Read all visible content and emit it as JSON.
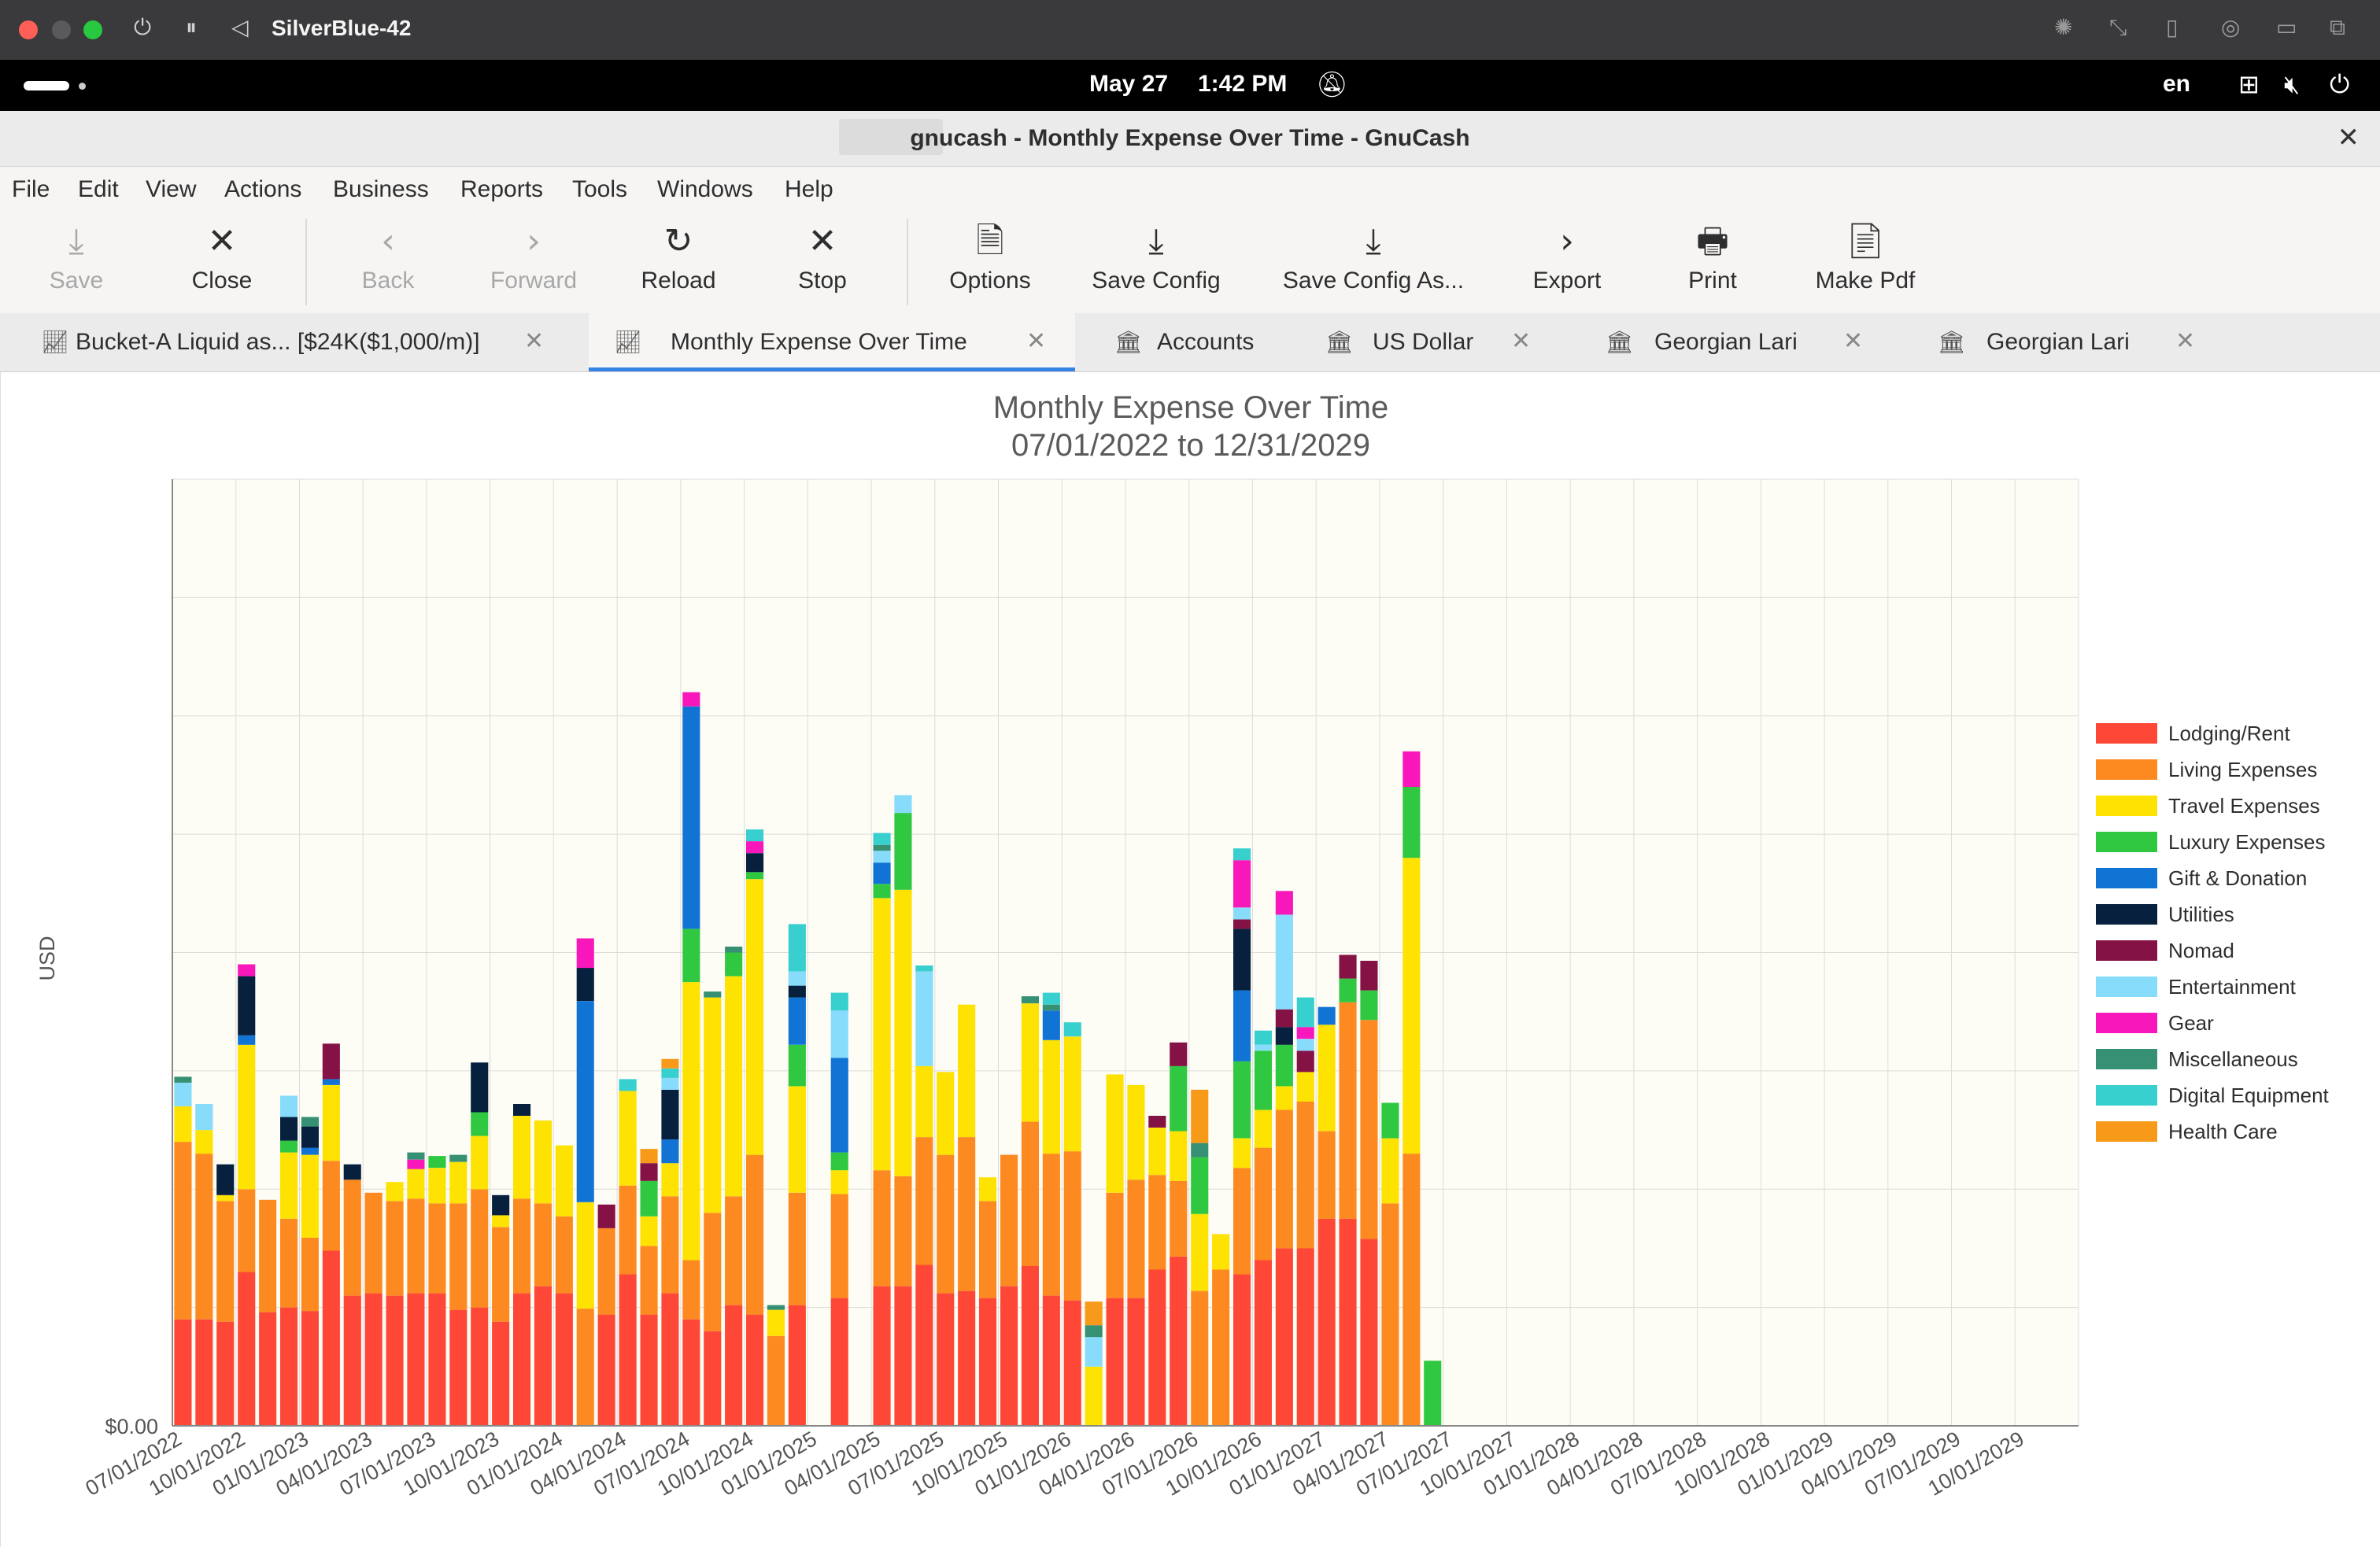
{
  "vm": {
    "title": "SilverBlue-42",
    "colors": {
      "close": "#ff5f57",
      "minimize": "#5a5a5c",
      "zoom": "#28c840"
    },
    "controls": [
      "power-icon",
      "pause-icon",
      "back-icon"
    ],
    "right_icons": [
      "brightness-icon",
      "resize-icon",
      "usb-icon",
      "network-icon",
      "folder-icon",
      "windows-icon"
    ]
  },
  "topbar": {
    "date": "May 27",
    "time": "1:42 PM",
    "lang": "en",
    "icons": [
      "activities-icon",
      "notifications-off-icon",
      "network-icon",
      "volume-muted-icon",
      "power-icon"
    ]
  },
  "window": {
    "title": "gnucash - Monthly Expense Over Time - GnuCash"
  },
  "menubar": {
    "items": [
      "File",
      "Edit",
      "View",
      "Actions",
      "Business",
      "Reports",
      "Tools",
      "Windows",
      "Help"
    ]
  },
  "toolbar": {
    "buttons": [
      {
        "label": "Save",
        "icon": "save-icon",
        "disabled": true
      },
      {
        "label": "Close",
        "icon": "close-icon",
        "disabled": false
      },
      {
        "label": "Back",
        "icon": "back-icon",
        "disabled": true
      },
      {
        "label": "Forward",
        "icon": "forward-icon",
        "disabled": true
      },
      {
        "label": "Reload",
        "icon": "reload-icon",
        "disabled": false
      },
      {
        "label": "Stop",
        "icon": "stop-icon",
        "disabled": false
      },
      {
        "label": "Options",
        "icon": "options-icon",
        "disabled": false
      },
      {
        "label": "Save Config",
        "icon": "save-config-icon",
        "disabled": false
      },
      {
        "label": "Save Config As...",
        "icon": "save-config-as-icon",
        "disabled": false
      },
      {
        "label": "Export",
        "icon": "export-icon",
        "disabled": false
      },
      {
        "label": "Print",
        "icon": "print-icon",
        "disabled": false
      },
      {
        "label": "Make Pdf",
        "icon": "pdf-icon",
        "disabled": false
      }
    ]
  },
  "tabs": [
    {
      "label": "Bucket-A Liquid as... [$24K($1,000/m)]",
      "icon": "chart-icon",
      "closable": true,
      "active": false
    },
    {
      "label": "Monthly Expense Over Time",
      "icon": "chart-icon",
      "closable": true,
      "active": true
    },
    {
      "label": "Accounts",
      "icon": "bank-icon",
      "closable": false,
      "active": false
    },
    {
      "label": "US Dollar",
      "icon": "bank-icon",
      "closable": true,
      "active": false
    },
    {
      "label": "Georgian Lari",
      "icon": "bank-icon",
      "closable": true,
      "active": false
    },
    {
      "label": "Georgian Lari",
      "icon": "bank-icon",
      "closable": true,
      "active": false
    }
  ],
  "chart_data": {
    "type": "bar",
    "stacked": true,
    "title": "Monthly Expense Over Time",
    "subtitle": "07/01/2022 to 12/31/2029",
    "ylabel": "USD",
    "y_tick_label": "$0.00",
    "ylim": [
      0,
      800
    ],
    "grid": true,
    "legend_position": "right",
    "x_tick_labels": [
      "07/01/2022",
      "10/01/2022",
      "01/01/2023",
      "04/01/2023",
      "07/01/2023",
      "10/01/2023",
      "01/01/2024",
      "04/01/2024",
      "07/01/2024",
      "10/01/2024",
      "01/01/2025",
      "04/01/2025",
      "07/01/2025",
      "10/01/2025",
      "01/01/2026",
      "04/01/2026",
      "07/01/2026",
      "10/01/2026",
      "01/01/2027",
      "04/01/2027",
      "07/01/2027",
      "10/01/2027",
      "01/01/2028",
      "04/01/2028",
      "07/01/2028",
      "10/01/2028",
      "01/01/2029",
      "04/01/2029",
      "07/01/2029",
      "10/01/2029"
    ],
    "series": [
      {
        "name": "Lodging/Rent",
        "color": "#fe4737",
        "values": [
          90,
          90,
          88,
          130,
          96,
          100,
          97,
          148,
          110,
          112,
          110,
          112,
          112,
          98,
          100,
          88,
          112,
          118,
          112,
          0,
          94,
          128,
          94,
          112,
          90,
          80,
          102,
          94,
          0,
          102,
          0,
          108,
          0,
          118,
          118,
          136,
          112,
          114,
          108,
          118,
          135,
          110,
          106,
          0,
          108,
          108,
          132,
          143,
          0,
          0,
          128,
          140,
          150,
          150,
          175,
          175,
          158,
          0,
          0,
          0,
          0,
          0,
          0,
          0,
          0,
          0,
          0
        ]
      },
      {
        "name": "Living Expenses",
        "color": "#fd8a21",
        "values": [
          150,
          140,
          102,
          70,
          95,
          75,
          62,
          76,
          98,
          85,
          80,
          80,
          76,
          90,
          100,
          80,
          80,
          70,
          65,
          99,
          73,
          75,
          58,
          82,
          50,
          100,
          92,
          135,
          76,
          95,
          0,
          88,
          0,
          98,
          93,
          108,
          117,
          130,
          82,
          111,
          122,
          120,
          126,
          0,
          89,
          100,
          80,
          64,
          114,
          132,
          90,
          95,
          117,
          124,
          74,
          183,
          185,
          188,
          230,
          0,
          0,
          0,
          0,
          0,
          0,
          0,
          0
        ]
      },
      {
        "name": "Travel Expenses",
        "color": "#fee202",
        "values": [
          30,
          20,
          5,
          122,
          0,
          56,
          70,
          64,
          0,
          0,
          16,
          25,
          30,
          35,
          45,
          10,
          70,
          70,
          60,
          90,
          0,
          80,
          25,
          28,
          235,
          182,
          186,
          233,
          22,
          90,
          0,
          20,
          0,
          230,
          242,
          60,
          70,
          112,
          20,
          0,
          100,
          96,
          97,
          50,
          100,
          80,
          40,
          42,
          65,
          30,
          25,
          32,
          20,
          25,
          90,
          0,
          0,
          55,
          250,
          0,
          0,
          0,
          0,
          0,
          0,
          0,
          0
        ]
      },
      {
        "name": "Luxury Expenses",
        "color": "#30c840",
        "values": [
          0,
          0,
          0,
          0,
          0,
          10,
          0,
          0,
          0,
          0,
          0,
          0,
          10,
          0,
          20,
          0,
          0,
          0,
          0,
          0,
          0,
          0,
          30,
          0,
          45,
          0,
          20,
          6,
          0,
          35,
          0,
          15,
          0,
          12,
          65,
          0,
          0,
          0,
          0,
          0,
          0,
          0,
          0,
          0,
          0,
          0,
          0,
          55,
          48,
          0,
          65,
          50,
          35,
          0,
          0,
          20,
          25,
          30,
          60,
          55,
          0,
          0,
          0,
          0,
          0,
          0,
          0
        ]
      },
      {
        "name": "Gift & Donation",
        "color": "#1174d5",
        "values": [
          0,
          0,
          0,
          8,
          0,
          0,
          6,
          5,
          0,
          0,
          0,
          0,
          0,
          0,
          0,
          0,
          0,
          0,
          0,
          170,
          0,
          0,
          0,
          20,
          188,
          0,
          0,
          0,
          0,
          40,
          0,
          80,
          0,
          18,
          0,
          0,
          0,
          0,
          0,
          0,
          0,
          25,
          0,
          0,
          0,
          0,
          0,
          0,
          0,
          0,
          60,
          0,
          0,
          0,
          15,
          0,
          0,
          0,
          0,
          0,
          0,
          0,
          0,
          0,
          0,
          0,
          0
        ]
      },
      {
        "name": "Utilities",
        "color": "#07203d",
        "values": [
          0,
          0,
          26,
          50,
          0,
          20,
          18,
          0,
          13,
          0,
          0,
          0,
          0,
          0,
          42,
          17,
          10,
          0,
          0,
          28,
          0,
          0,
          0,
          42,
          0,
          0,
          0,
          16,
          0,
          10,
          0,
          0,
          0,
          0,
          0,
          0,
          0,
          0,
          0,
          0,
          0,
          0,
          0,
          0,
          0,
          0,
          0,
          0,
          0,
          0,
          52,
          0,
          15,
          0,
          0,
          0,
          0,
          0,
          0,
          0,
          0,
          0,
          0,
          0,
          0,
          0,
          0
        ]
      },
      {
        "name": "Nomad",
        "color": "#851245",
        "values": [
          0,
          0,
          0,
          0,
          0,
          0,
          0,
          30,
          0,
          0,
          0,
          0,
          0,
          0,
          0,
          0,
          0,
          0,
          0,
          0,
          20,
          0,
          15,
          0,
          0,
          0,
          0,
          0,
          0,
          0,
          0,
          0,
          0,
          0,
          0,
          0,
          0,
          0,
          0,
          0,
          0,
          0,
          0,
          0,
          0,
          0,
          10,
          20,
          0,
          0,
          8,
          0,
          15,
          18,
          0,
          20,
          25,
          0,
          0,
          0,
          0,
          0,
          0,
          0,
          0,
          0,
          0
        ]
      },
      {
        "name": "Entertainment",
        "color": "#87dbfb",
        "values": [
          20,
          22,
          0,
          0,
          0,
          18,
          0,
          0,
          0,
          0,
          0,
          0,
          0,
          0,
          0,
          0,
          0,
          0,
          0,
          0,
          0,
          0,
          0,
          10,
          0,
          0,
          0,
          0,
          0,
          12,
          0,
          40,
          0,
          10,
          15,
          80,
          0,
          0,
          0,
          0,
          0,
          0,
          0,
          25,
          0,
          0,
          0,
          0,
          0,
          0,
          10,
          5,
          80,
          10,
          0,
          0,
          0,
          0,
          0,
          0,
          0,
          0,
          0,
          0,
          0,
          0,
          0
        ]
      },
      {
        "name": "Gear",
        "color": "#f817bb",
        "values": [
          0,
          0,
          0,
          10,
          0,
          0,
          0,
          0,
          0,
          0,
          0,
          8,
          0,
          0,
          0,
          0,
          0,
          0,
          0,
          25,
          0,
          0,
          0,
          0,
          12,
          0,
          0,
          10,
          0,
          0,
          0,
          0,
          0,
          0,
          0,
          0,
          0,
          0,
          0,
          0,
          0,
          0,
          0,
          0,
          0,
          0,
          0,
          0,
          0,
          0,
          40,
          0,
          20,
          10,
          0,
          0,
          0,
          0,
          30,
          0,
          0,
          0,
          0,
          0,
          0,
          0,
          0
        ]
      },
      {
        "name": "Miscellaneous",
        "color": "#369074",
        "values": [
          5,
          0,
          0,
          0,
          0,
          0,
          8,
          0,
          0,
          0,
          0,
          6,
          0,
          6,
          0,
          0,
          0,
          0,
          0,
          0,
          0,
          0,
          0,
          0,
          0,
          5,
          5,
          0,
          4,
          0,
          0,
          0,
          0,
          5,
          0,
          0,
          0,
          0,
          0,
          0,
          6,
          5,
          0,
          10,
          0,
          0,
          0,
          0,
          12,
          0,
          0,
          0,
          0,
          0,
          0,
          0,
          0,
          0,
          0,
          0,
          0,
          0,
          0,
          0,
          0,
          0,
          0
        ]
      },
      {
        "name": "Digital Equipment",
        "color": "#38cfcf",
        "values": [
          0,
          0,
          0,
          0,
          0,
          0,
          0,
          0,
          0,
          0,
          0,
          0,
          0,
          0,
          0,
          0,
          0,
          0,
          0,
          0,
          0,
          10,
          0,
          8,
          0,
          0,
          0,
          10,
          0,
          40,
          0,
          15,
          0,
          10,
          0,
          5,
          0,
          0,
          0,
          0,
          0,
          10,
          12,
          0,
          0,
          0,
          0,
          0,
          0,
          0,
          10,
          12,
          0,
          25,
          0,
          0,
          0,
          0,
          0,
          0,
          0,
          0,
          0,
          0,
          0,
          0,
          0
        ]
      },
      {
        "name": "Health Care",
        "color": "#f79a19",
        "values": [
          0,
          0,
          0,
          0,
          0,
          0,
          0,
          0,
          0,
          0,
          0,
          0,
          0,
          0,
          0,
          0,
          0,
          0,
          0,
          0,
          0,
          0,
          12,
          8,
          0,
          0,
          0,
          0,
          0,
          0,
          0,
          0,
          0,
          0,
          0,
          0,
          0,
          0,
          0,
          0,
          0,
          0,
          0,
          20,
          0,
          0,
          0,
          0,
          45,
          0,
          0,
          0,
          0,
          0,
          0,
          0,
          0,
          0,
          0,
          0,
          0,
          0,
          0,
          0,
          0,
          0,
          0
        ]
      }
    ]
  }
}
